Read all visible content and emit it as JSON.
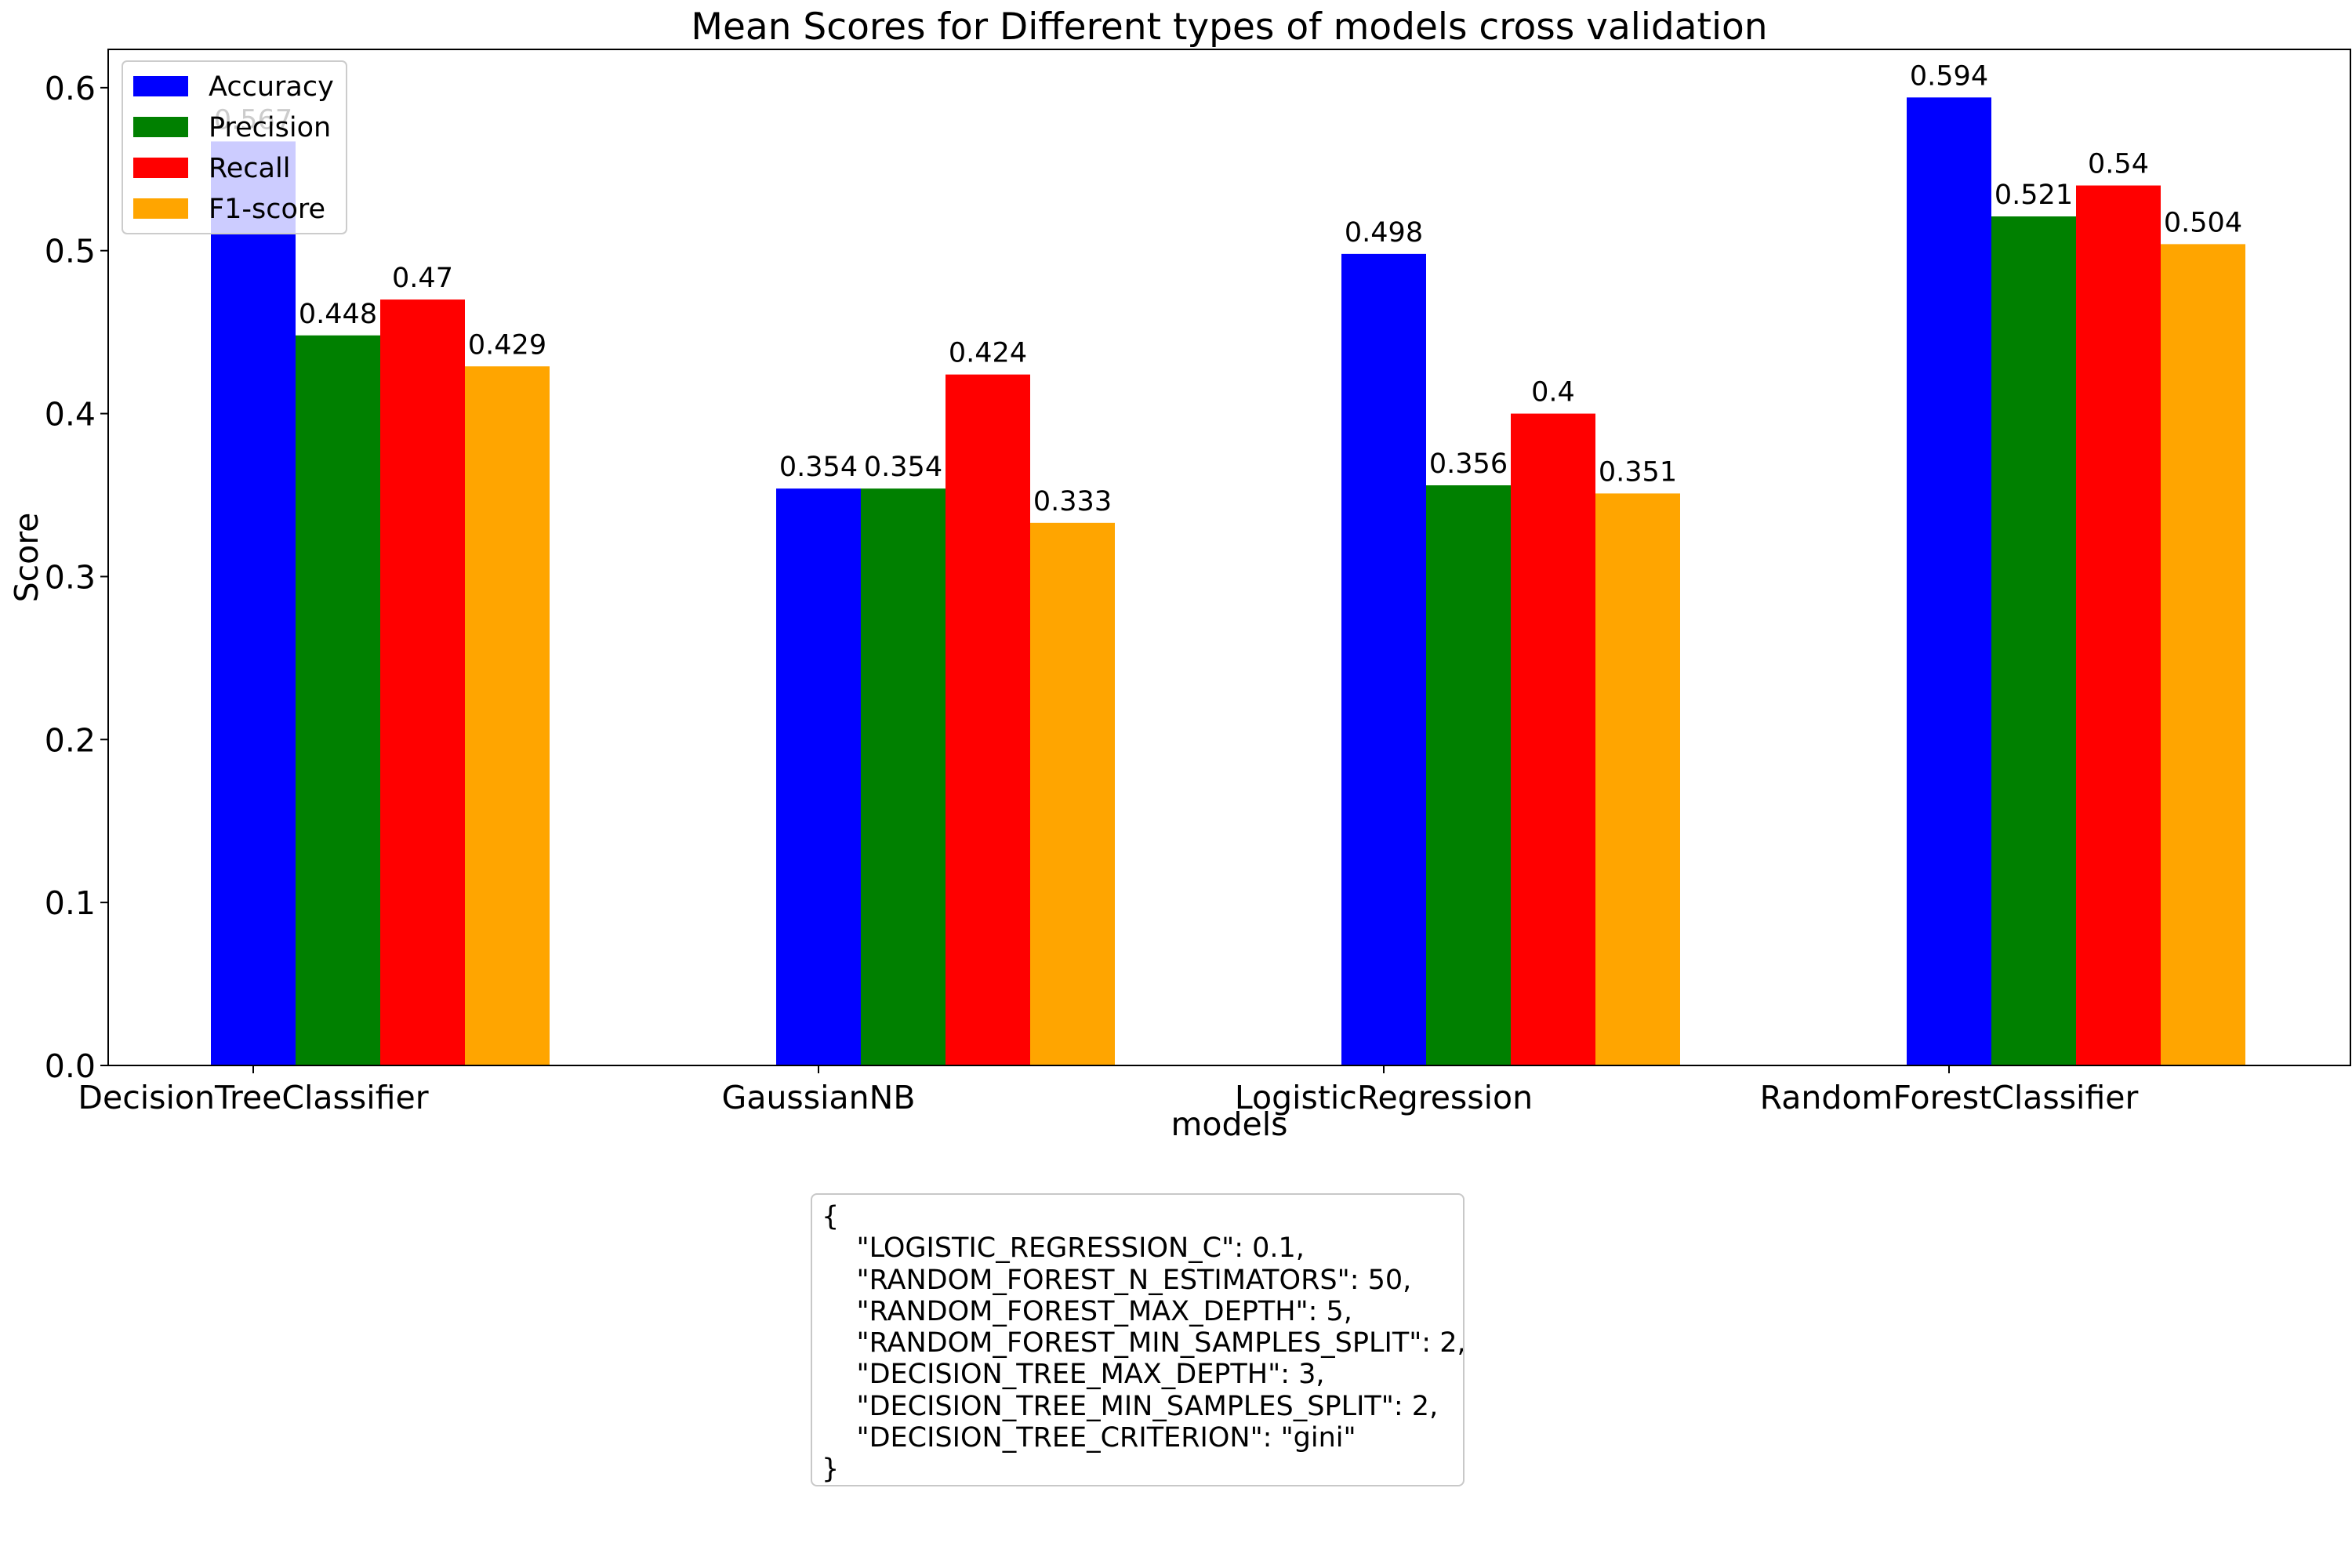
{
  "chart_data": {
    "type": "bar",
    "title": "Mean Scores for Different types of models cross validation",
    "xlabel": "models",
    "ylabel": "Score",
    "categories": [
      "DecisionTreeClassifier",
      "GaussianNB",
      "LogisticRegression",
      "RandomForestClassifier"
    ],
    "series": [
      {
        "name": "Accuracy",
        "color": "#0000ff",
        "values": [
          0.567,
          0.354,
          0.498,
          0.594
        ],
        "labels": [
          "0.567",
          "0.354",
          "0.498",
          "0.594"
        ]
      },
      {
        "name": "Precision",
        "color": "#008000",
        "values": [
          0.448,
          0.354,
          0.356,
          0.521
        ],
        "labels": [
          "0.448",
          "0.354",
          "0.356",
          "0.521"
        ]
      },
      {
        "name": "Recall",
        "color": "#ff0000",
        "values": [
          0.47,
          0.424,
          0.4,
          0.54
        ],
        "labels": [
          "0.47",
          "0.424",
          "0.4",
          "0.54"
        ]
      },
      {
        "name": "F1-score",
        "color": "#ffa500",
        "values": [
          0.429,
          0.333,
          0.351,
          0.504
        ],
        "labels": [
          "0.429",
          "0.333",
          "0.351",
          "0.504"
        ]
      }
    ],
    "ylim": [
      0,
      0.6235
    ],
    "yticks": [
      "0.0",
      "0.1",
      "0.2",
      "0.3",
      "0.4",
      "0.5",
      "0.6"
    ],
    "grid": false,
    "legend_position": "top-left"
  },
  "config_box": {
    "lines": [
      "{",
      "    \"LOGISTIC_REGRESSION_C\": 0.1,",
      "    \"RANDOM_FOREST_N_ESTIMATORS\": 50,",
      "    \"RANDOM_FOREST_MAX_DEPTH\": 5,",
      "    \"RANDOM_FOREST_MIN_SAMPLES_SPLIT\": 2,",
      "    \"DECISION_TREE_MAX_DEPTH\": 3,",
      "    \"DECISION_TREE_MIN_SAMPLES_SPLIT\": 2,",
      "    \"DECISION_TREE_CRITERION\": \"gini\"",
      "}"
    ]
  }
}
